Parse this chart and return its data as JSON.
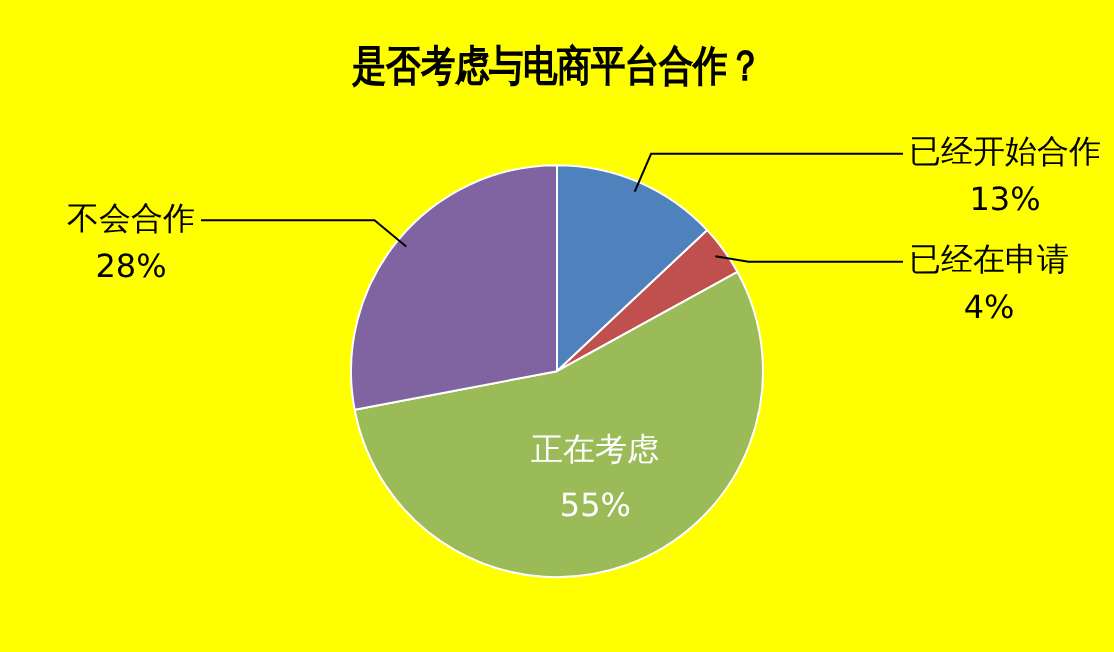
{
  "chart_data": {
    "type": "pie",
    "title": "是否考虑与电商平台合作？",
    "categories": [
      "已经开始合作",
      "已经在申请",
      "正在考虑",
      "不会合作"
    ],
    "values": [
      13,
      4,
      55,
      28
    ],
    "colors": [
      "#4f81bd",
      "#c0504d",
      "#9bbb59",
      "#8064a2"
    ],
    "value_labels": [
      "13%",
      "4%",
      "55%",
      "28%"
    ],
    "legend": false
  }
}
